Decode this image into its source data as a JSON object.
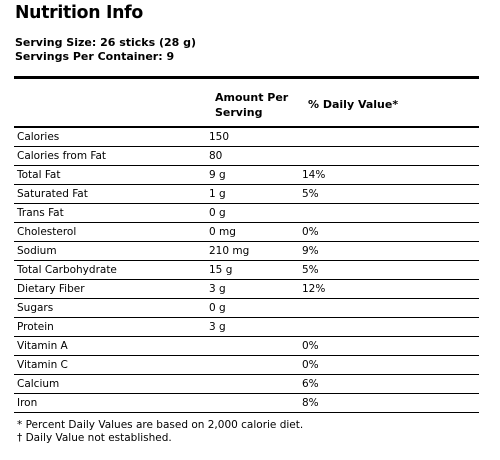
{
  "title": "Nutrition Info",
  "serving_size": "Serving Size: 26 sticks (28 g)",
  "servings_per_container": "Servings Per Container: 9",
  "headers": {
    "amount": "Amount Per Serving",
    "daily_value": "% Daily Value*"
  },
  "rows": [
    {
      "name": "Calories",
      "amount": "150",
      "dv": ""
    },
    {
      "name": "Calories from Fat",
      "amount": "80",
      "dv": ""
    },
    {
      "name": "Total Fat",
      "amount": "9 g",
      "dv": "14%"
    },
    {
      "name": "Saturated Fat",
      "amount": "1 g",
      "dv": "5%"
    },
    {
      "name": "Trans Fat",
      "amount": "0 g",
      "dv": ""
    },
    {
      "name": "Cholesterol",
      "amount": "0 mg",
      "dv": "0%"
    },
    {
      "name": "Sodium",
      "amount": "210 mg",
      "dv": "9%"
    },
    {
      "name": "Total Carbohydrate",
      "amount": "15 g",
      "dv": "5%"
    },
    {
      "name": "Dietary Fiber",
      "amount": "3 g",
      "dv": "12%"
    },
    {
      "name": "Sugars",
      "amount": "0 g",
      "dv": ""
    },
    {
      "name": "Protein",
      "amount": "3 g",
      "dv": ""
    },
    {
      "name": "Vitamin A",
      "amount": "",
      "dv": "0%"
    },
    {
      "name": "Vitamin C",
      "amount": "",
      "dv": "0%"
    },
    {
      "name": "Calcium",
      "amount": "",
      "dv": "6%"
    },
    {
      "name": "Iron",
      "amount": "",
      "dv": "8%"
    }
  ],
  "footnotes": [
    "* Percent Daily Values are based on 2,000 calorie diet.",
    "† Daily Value not established."
  ]
}
